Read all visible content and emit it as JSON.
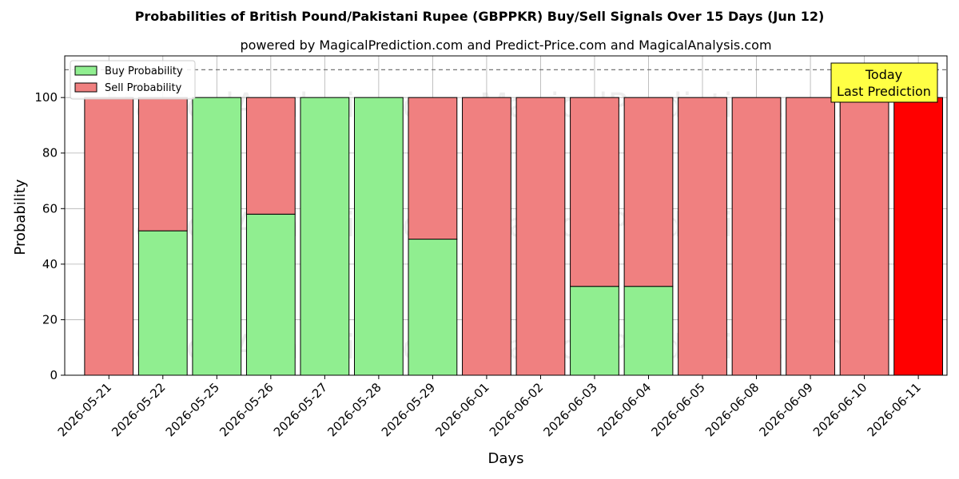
{
  "chart_data": {
    "type": "bar",
    "stacked": true,
    "title": "Probabilities of British Pound/Pakistani Rupee (GBPPKR) Buy/Sell Signals Over 15 Days (Jun 12)",
    "subtitle": "powered by MagicalPrediction.com and Predict-Price.com and MagicalAnalysis.com",
    "xlabel": "Days",
    "ylabel": "Probability",
    "ylim": [
      0,
      115
    ],
    "yticks": [
      0,
      20,
      40,
      60,
      80,
      100
    ],
    "grid": true,
    "legend_position": "top-left",
    "reference_line": 110,
    "categories": [
      "2026-05-21",
      "2026-05-22",
      "2026-05-25",
      "2026-05-26",
      "2026-05-27",
      "2026-05-28",
      "2026-05-29",
      "2026-06-01",
      "2026-06-02",
      "2026-06-03",
      "2026-06-04",
      "2026-06-05",
      "2026-06-08",
      "2026-06-09",
      "2026-06-10",
      "2026-06-11"
    ],
    "series": [
      {
        "name": "Buy Probability",
        "color": "#90ee90",
        "values": [
          0,
          52,
          100,
          58,
          100,
          100,
          49,
          0,
          0,
          32,
          32,
          0,
          0,
          0,
          0,
          0
        ]
      },
      {
        "name": "Sell Probability",
        "color": "#f08080",
        "values": [
          100,
          48,
          0,
          42,
          0,
          0,
          51,
          100,
          100,
          68,
          68,
          100,
          100,
          100,
          100,
          100
        ]
      }
    ],
    "highlight": {
      "index": 15,
      "color": "#ff0000"
    },
    "annotation": {
      "line1": "Today",
      "line2": "Last Prediction",
      "color": "#ffff44"
    },
    "watermarks": [
      "MagicalAnalysis.com",
      "MagicalPrediction.com"
    ]
  }
}
